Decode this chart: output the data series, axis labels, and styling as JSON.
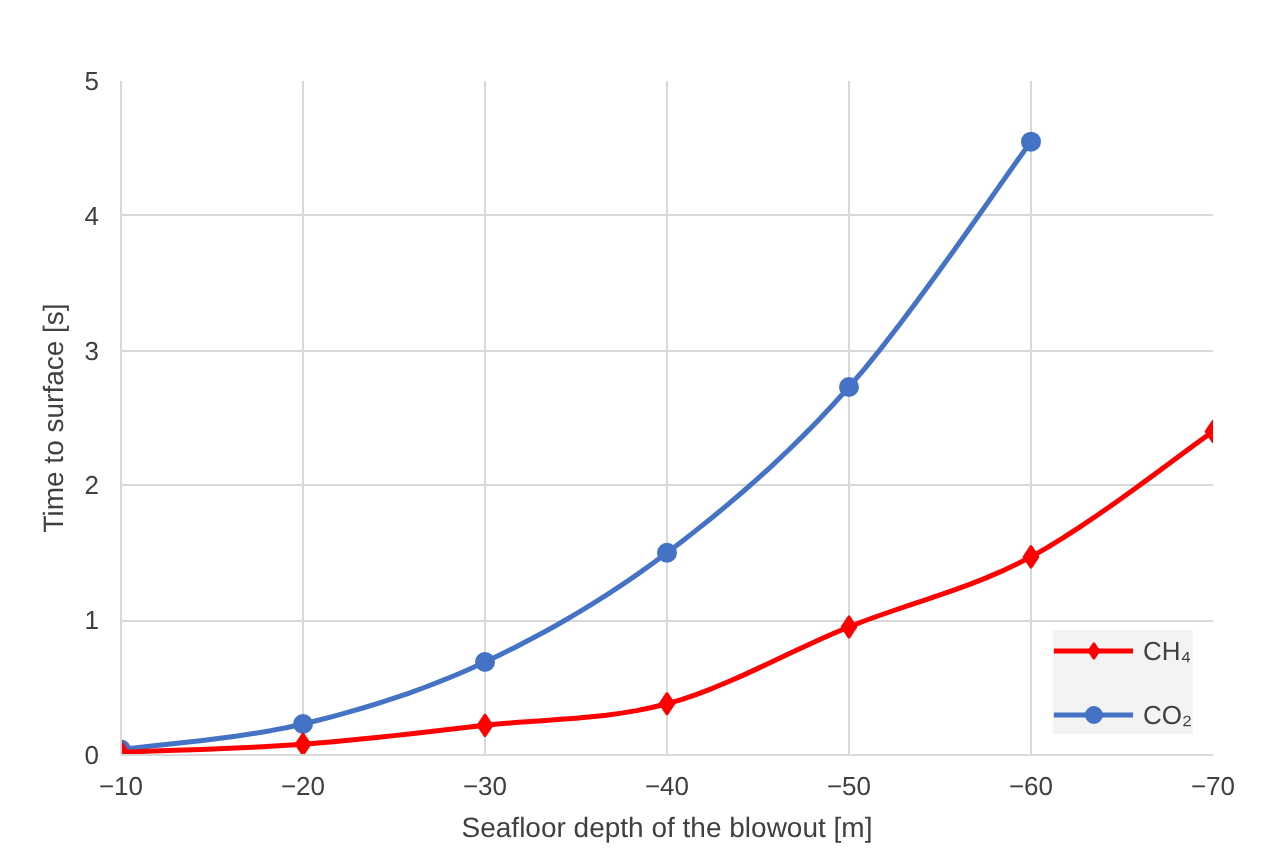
{
  "chart_data": {
    "type": "line",
    "xlabel": "Seafloor depth of the blowout [m]",
    "ylabel": "Time to surface [s]",
    "x": [
      -10,
      -20,
      -30,
      -40,
      -50,
      -60,
      -70
    ],
    "series": [
      {
        "name": "CH₄",
        "color": "#ff0000",
        "marker": "diamond",
        "values": [
          0.02,
          0.08,
          0.22,
          0.38,
          0.95,
          1.47,
          2.4
        ]
      },
      {
        "name": "CO₂",
        "color": "#4472c4",
        "marker": "circle",
        "values": [
          0.04,
          0.23,
          0.69,
          1.5,
          2.73,
          4.55,
          null
        ]
      }
    ],
    "xlim": [
      -10,
      -70
    ],
    "xticks": [
      -10,
      -20,
      -30,
      -40,
      -50,
      -60,
      -70
    ],
    "ylim": [
      0,
      5
    ],
    "yticks": [
      0,
      1,
      2,
      3,
      4,
      5
    ],
    "grid": true,
    "legend": "bottom right"
  }
}
